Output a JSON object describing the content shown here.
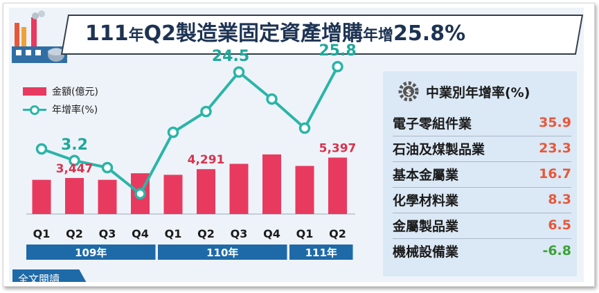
{
  "header": {
    "title_part1": "111",
    "title_part2": "年",
    "title_part3": "Q2製造業固定資產增購",
    "title_part4": "年增",
    "title_part5": "25.8%"
  },
  "legend": {
    "bar_label": "金額(億元)",
    "line_label": "年增率(%)"
  },
  "chart_data": {
    "type": "bar",
    "categories": [
      "Q1",
      "Q2",
      "Q3",
      "Q4",
      "Q1",
      "Q2",
      "Q3",
      "Q4",
      "Q1",
      "Q2"
    ],
    "groups": [
      {
        "label": "109年",
        "span": [
          0,
          3
        ]
      },
      {
        "label": "110年",
        "span": [
          4,
          7
        ]
      },
      {
        "label": "111年",
        "span": [
          8,
          9
        ]
      }
    ],
    "series": [
      {
        "name": "金額(億元)",
        "type": "bar",
        "color": "#e83a5f",
        "values": [
          3270,
          3447,
          3270,
          3900,
          3750,
          4291,
          4800,
          5700,
          4600,
          5397
        ],
        "labels": [
          "",
          "3,447",
          "",
          "",
          "",
          "4,291",
          "",
          "",
          "",
          "5,397"
        ]
      },
      {
        "name": "年增率(%)",
        "type": "line",
        "color": "#2ab5a8",
        "values": [
          6.0,
          3.2,
          1.5,
          -4.8,
          10.0,
          15.0,
          24.5,
          18.0,
          11.0,
          25.8
        ],
        "labels": [
          "",
          "3.2",
          "",
          "",
          "",
          "",
          "24.5",
          "",
          "",
          "25.8"
        ]
      }
    ],
    "bar_ylim": [
      0,
      7000
    ],
    "line_ylim": [
      -10,
      30
    ],
    "grid": false
  },
  "panel": {
    "title": "中業別年增率(%)",
    "rows": [
      {
        "name": "電子零組件業",
        "value": "35.9",
        "color": "#e8573a"
      },
      {
        "name": "石油及煤製品業",
        "value": "23.3",
        "color": "#e8573a"
      },
      {
        "name": "基本金屬業",
        "value": "16.7",
        "color": "#e8573a"
      },
      {
        "name": "化學材料業",
        "value": "8.3",
        "color": "#e8573a"
      },
      {
        "name": "金屬製品業",
        "value": "6.5",
        "color": "#e8573a"
      },
      {
        "name": "機械設備業",
        "value": "-6.8",
        "color": "#3aa335"
      }
    ]
  },
  "footer": {
    "full_text_label": "全文閱讀"
  }
}
